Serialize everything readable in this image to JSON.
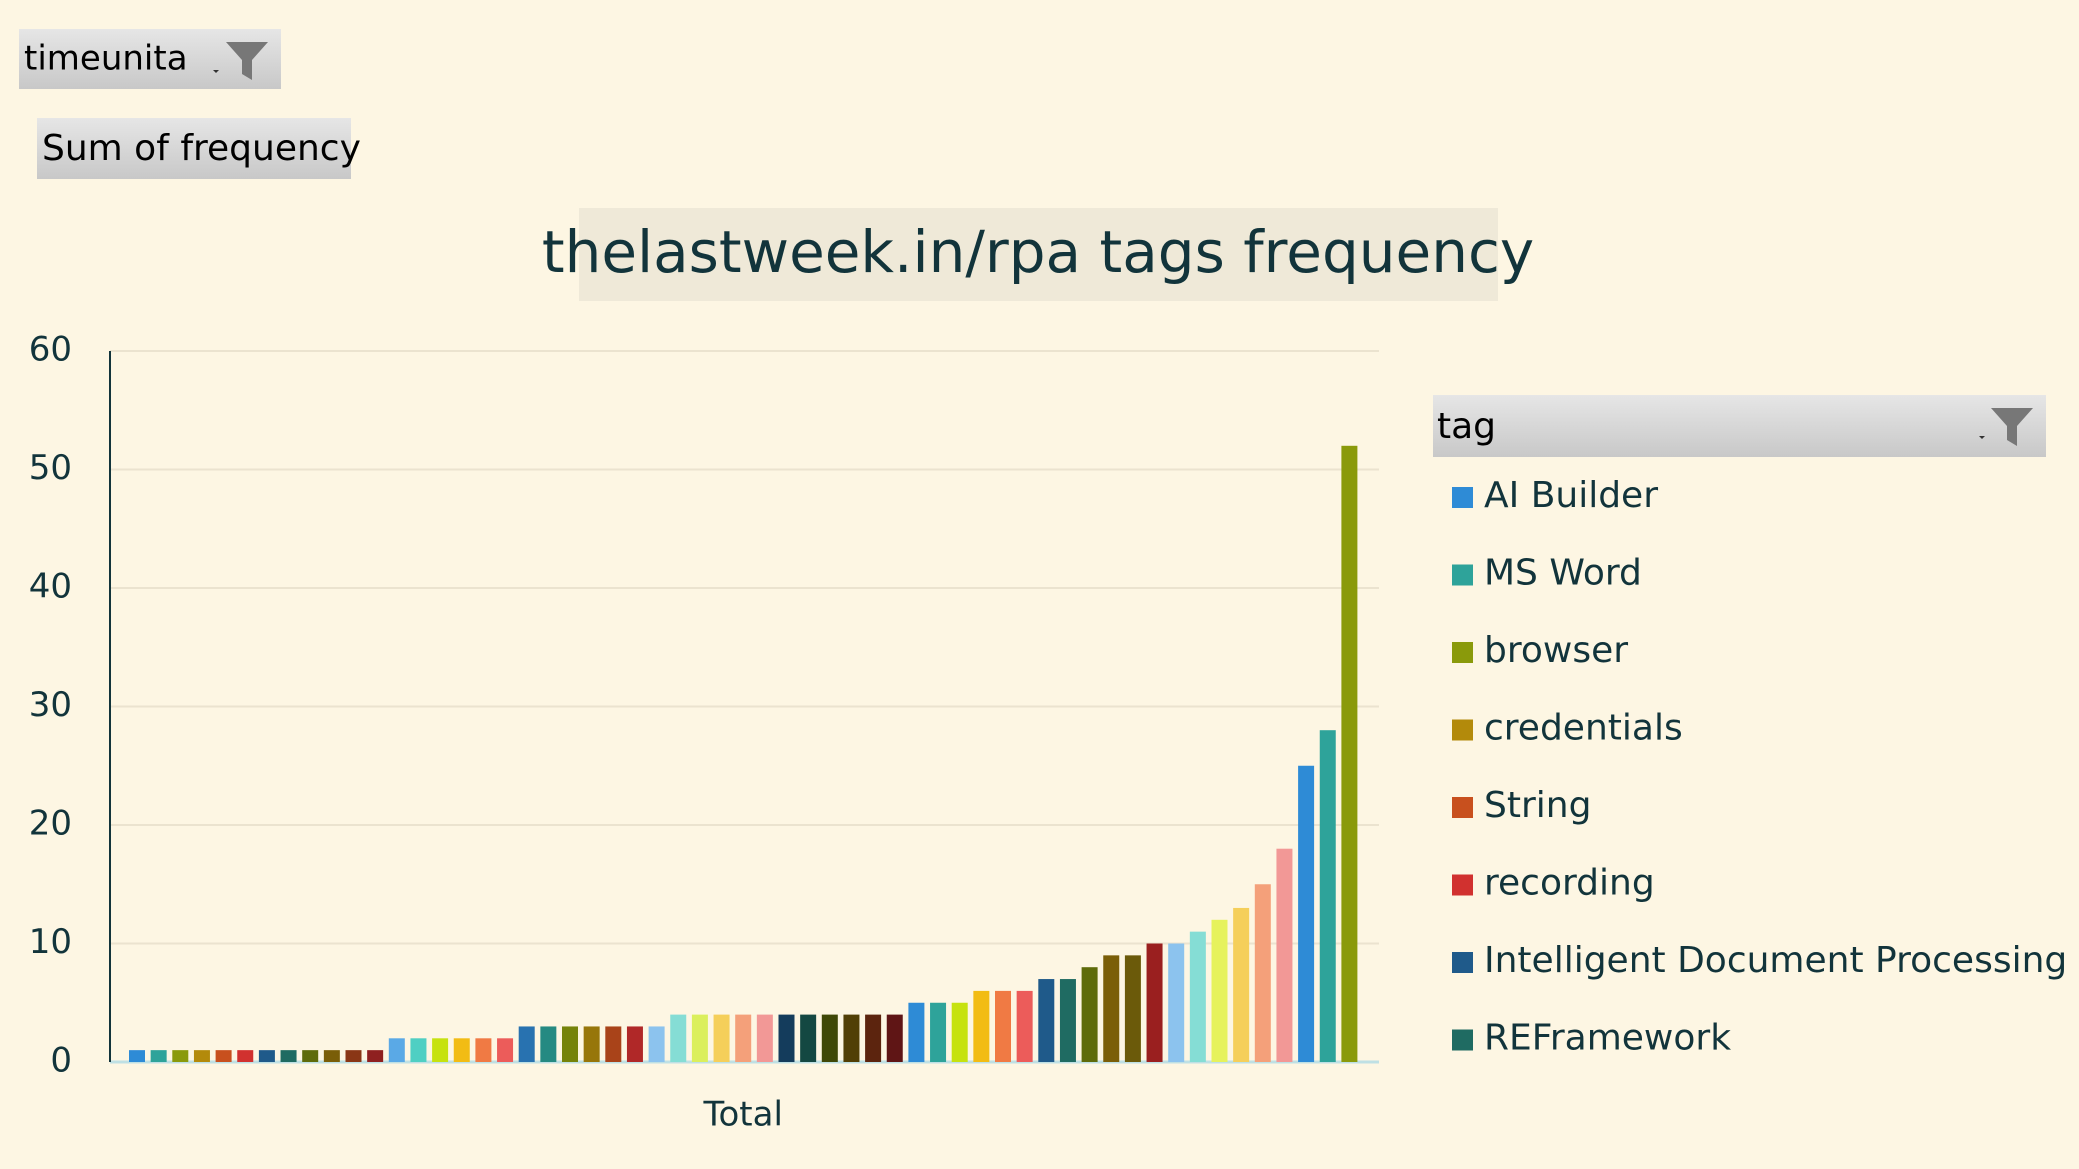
{
  "chart_data": {
    "type": "bar",
    "title": "thelastweek.in/rpa tags frequency",
    "filter_field": "timeunita",
    "value_field": "Sum of frequency",
    "legend_title": "tag",
    "categories": [
      "Total"
    ],
    "ylim": [
      0,
      60
    ],
    "yticks": [
      0,
      10,
      20,
      30,
      40,
      50,
      60
    ],
    "grid": true,
    "series": [
      {
        "name": "AI Builder",
        "color": "#2e8bd6",
        "values": [
          1
        ]
      },
      {
        "name": "MS Word",
        "color": "#2ea39a",
        "values": [
          1
        ]
      },
      {
        "name": "browser",
        "color": "#8a9a0b",
        "values": [
          1
        ]
      },
      {
        "name": "credentials",
        "color": "#b38a0b",
        "values": [
          1
        ]
      },
      {
        "name": "String",
        "color": "#c8501e",
        "values": [
          1
        ]
      },
      {
        "name": "recording",
        "color": "#d1312f",
        "values": [
          1
        ]
      },
      {
        "name": "Intelligent Document Processing",
        "color": "#1f5a8a",
        "values": [
          1
        ]
      },
      {
        "name": "REFramework",
        "color": "#1f6b62",
        "values": [
          1
        ]
      },
      {
        "color": "#5e6b0a",
        "values": [
          1
        ]
      },
      {
        "color": "#7a5e08",
        "values": [
          1
        ]
      },
      {
        "color": "#8a3615",
        "values": [
          1
        ]
      },
      {
        "color": "#8f2020",
        "values": [
          1
        ]
      },
      {
        "color": "#5aa9e6",
        "values": [
          2
        ]
      },
      {
        "color": "#4fcfc3",
        "values": [
          2
        ]
      },
      {
        "color": "#c6e20f",
        "values": [
          2
        ]
      },
      {
        "color": "#f2bc14",
        "values": [
          2
        ]
      },
      {
        "color": "#f07a44",
        "values": [
          2
        ]
      },
      {
        "color": "#ec5c5a",
        "values": [
          2
        ]
      },
      {
        "color": "#2872b0",
        "values": [
          3
        ]
      },
      {
        "color": "#258a82",
        "values": [
          3
        ]
      },
      {
        "color": "#75830a",
        "values": [
          3
        ]
      },
      {
        "color": "#97760a",
        "values": [
          3
        ]
      },
      {
        "color": "#a94319",
        "values": [
          3
        ]
      },
      {
        "color": "#b02828",
        "values": [
          3
        ]
      },
      {
        "color": "#8cc3ee",
        "values": [
          3
        ]
      },
      {
        "color": "#85ddd5",
        "values": [
          4
        ]
      },
      {
        "color": "#dbef5c",
        "values": [
          4
        ]
      },
      {
        "color": "#f5cf5a",
        "values": [
          4
        ]
      },
      {
        "color": "#f4a07a",
        "values": [
          4
        ]
      },
      {
        "color": "#f29896",
        "values": [
          4
        ]
      },
      {
        "color": "#143c5c",
        "values": [
          4
        ]
      },
      {
        "color": "#144842",
        "values": [
          4
        ]
      },
      {
        "color": "#3f4807",
        "values": [
          4
        ]
      },
      {
        "color": "#513f05",
        "values": [
          4
        ]
      },
      {
        "color": "#5c240e",
        "values": [
          4
        ]
      },
      {
        "color": "#5f1515",
        "values": [
          4
        ]
      },
      {
        "color": "#2e8bd6",
        "values": [
          5
        ]
      },
      {
        "color": "#2ea39a",
        "values": [
          5
        ]
      },
      {
        "color": "#c6e20f",
        "values": [
          5
        ]
      },
      {
        "color": "#f2bc14",
        "values": [
          6
        ]
      },
      {
        "color": "#f07a44",
        "values": [
          6
        ]
      },
      {
        "color": "#ec5c5a",
        "values": [
          6
        ]
      },
      {
        "color": "#1f5a8a",
        "values": [
          7
        ]
      },
      {
        "color": "#1f6b62",
        "values": [
          7
        ]
      },
      {
        "color": "#5e6b0a",
        "values": [
          8
        ]
      },
      {
        "color": "#7a5e08",
        "values": [
          9
        ]
      },
      {
        "color": "#6b5a0a",
        "values": [
          9
        ]
      },
      {
        "color": "#9a1f1f",
        "values": [
          10
        ]
      },
      {
        "color": "#8cc3ee",
        "values": [
          10
        ]
      },
      {
        "color": "#85ddd5",
        "values": [
          11
        ]
      },
      {
        "color": "#e6f25c",
        "values": [
          12
        ]
      },
      {
        "color": "#f5cf5a",
        "values": [
          13
        ]
      },
      {
        "color": "#f4a07a",
        "values": [
          15
        ]
      },
      {
        "color": "#f29896",
        "values": [
          18
        ]
      },
      {
        "color": "#2e8bd6",
        "values": [
          25
        ]
      },
      {
        "color": "#2ea39a",
        "values": [
          28
        ]
      },
      {
        "color": "#8a9a0b",
        "values": [
          52
        ]
      }
    ]
  }
}
